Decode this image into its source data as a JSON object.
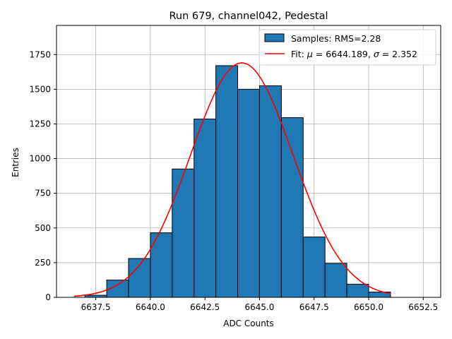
{
  "chart_data": {
    "type": "bar",
    "title": "Run 679, channel042, Pedestal",
    "xlabel": "ADC Counts",
    "ylabel": "Entries",
    "xlim": [
      6635.7,
      6653.3
    ],
    "ylim": [
      0,
      1960
    ],
    "x_ticks": [
      6637.5,
      6640.0,
      6642.5,
      6645.0,
      6647.5,
      6650.0,
      6652.5
    ],
    "x_tick_labels": [
      "6637.5",
      "6640.0",
      "6642.5",
      "6645.0",
      "6647.5",
      "6650.0",
      "6652.5"
    ],
    "y_ticks": [
      0,
      250,
      500,
      750,
      1000,
      1250,
      1500,
      1750
    ],
    "y_tick_labels": [
      "0",
      "250",
      "500",
      "750",
      "1000",
      "1250",
      "1500",
      "1750"
    ],
    "grid": true,
    "legend_position": "top-right",
    "histogram": {
      "name": "Samples: RMS=2.28",
      "color": "#1f77b4",
      "edgecolor": "#000000",
      "bins": [
        {
          "x0": 6637.0,
          "x1": 6638.0,
          "count": 15
        },
        {
          "x0": 6638.0,
          "x1": 6639.0,
          "count": 125
        },
        {
          "x0": 6639.0,
          "x1": 6640.0,
          "count": 280
        },
        {
          "x0": 6640.0,
          "x1": 6641.0,
          "count": 465
        },
        {
          "x0": 6641.0,
          "x1": 6642.0,
          "count": 925
        },
        {
          "x0": 6642.0,
          "x1": 6643.0,
          "count": 1285
        },
        {
          "x0": 6643.0,
          "x1": 6644.0,
          "count": 1670
        },
        {
          "x0": 6644.0,
          "x1": 6645.0,
          "count": 1500
        },
        {
          "x0": 6645.0,
          "x1": 6646.0,
          "count": 1525
        },
        {
          "x0": 6646.0,
          "x1": 6647.0,
          "count": 1295
        },
        {
          "x0": 6647.0,
          "x1": 6648.0,
          "count": 435
        },
        {
          "x0": 6648.0,
          "x1": 6649.0,
          "count": 245
        },
        {
          "x0": 6649.0,
          "x1": 6650.0,
          "count": 95
        },
        {
          "x0": 6650.0,
          "x1": 6651.0,
          "count": 38
        }
      ]
    },
    "fit": {
      "name_prefix": "Fit: ",
      "mu_symbol": "μ",
      "sigma_symbol": "σ",
      "mu": 6644.189,
      "sigma": 2.352,
      "amplitude": 1690,
      "x_range": [
        6636.5,
        6651.0
      ],
      "color": "#ff0000",
      "mu_text": " = 6644.189, ",
      "sigma_text": " = 2.352"
    }
  }
}
